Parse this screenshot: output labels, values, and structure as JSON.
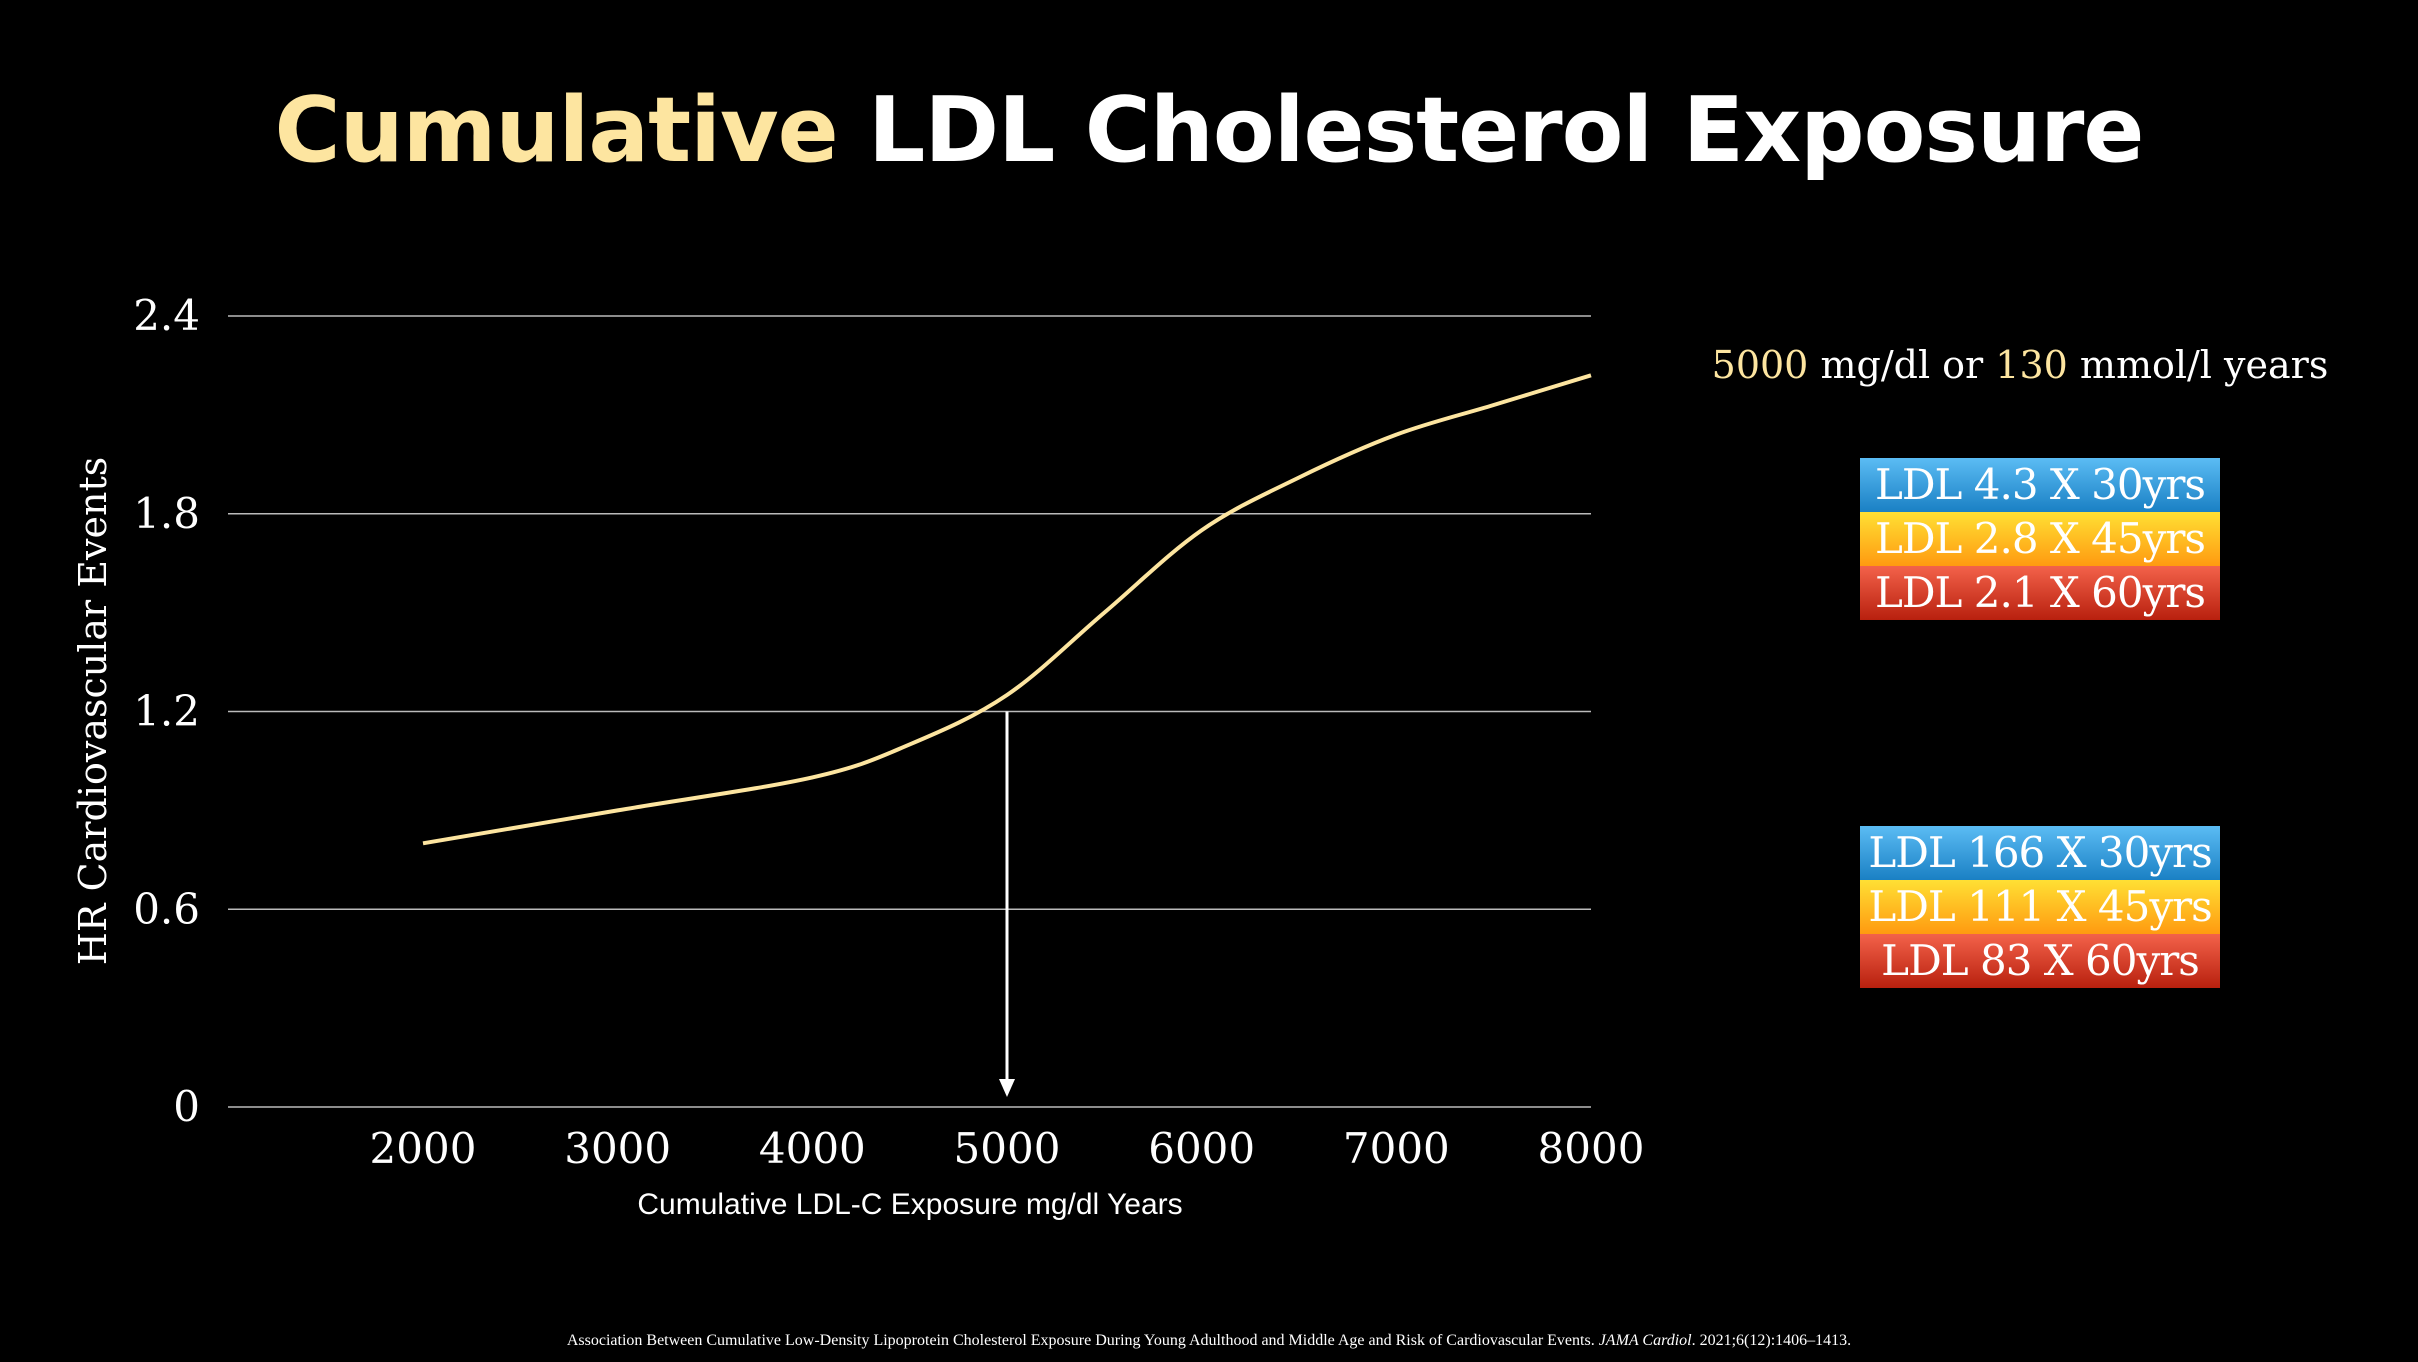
{
  "title": {
    "highlight": "Cumulative",
    "rest": " LDL Cholesterol Exposure"
  },
  "note": {
    "v1": "5000",
    "t1": " mg/dl or ",
    "v2": "130",
    "t2": " mmol/l years"
  },
  "boxes_mmol": [
    "LDL 4.3 X 30yrs",
    "LDL 2.8 X 45yrs",
    "LDL 2.1 X 60yrs"
  ],
  "boxes_mgdl": [
    "LDL 166 X 30yrs",
    "LDL 111 X 45yrs",
    "LDL 83 X 60yrs"
  ],
  "footer": {
    "text": "Association Between Cumulative Low-Density Lipoprotein Cholesterol Exposure During Young Adulthood and Middle Age and Risk of Cardiovascular Events. ",
    "journal": "JAMA Cardiol",
    "cite": ". 2021;6(12):1406–1413."
  },
  "colors": {
    "line": "#fde5a0",
    "highlight": "#fde5a0",
    "blue": "#1a80c4",
    "yellow": "#ffb020",
    "red": "#d0301a"
  },
  "chart_data": {
    "type": "line",
    "xlabel": "Cumulative LDL-C Exposure mg/dl Years",
    "ylabel": "HR Cardiovascular Events",
    "xticks": [
      "2000",
      "3000",
      "4000",
      "5000",
      "6000",
      "7000",
      "8000"
    ],
    "yticks": [
      "0",
      "0.6",
      "1.2",
      "1.8",
      "2.4"
    ],
    "xlim": [
      1000,
      8000
    ],
    "ylim": [
      0,
      2.4
    ],
    "grid": "horizontal",
    "series": [
      {
        "name": "HR",
        "x": [
          2000,
          3000,
          4000,
          4500,
          5000,
          5500,
          6000,
          6500,
          7000,
          7500,
          8000
        ],
        "y": [
          0.8,
          0.9,
          1.0,
          1.1,
          1.25,
          1.5,
          1.75,
          1.91,
          2.04,
          2.13,
          2.22
        ]
      }
    ],
    "annotation": {
      "type": "arrow",
      "x": 5000,
      "from_y": 1.2,
      "to_y": 0
    }
  }
}
